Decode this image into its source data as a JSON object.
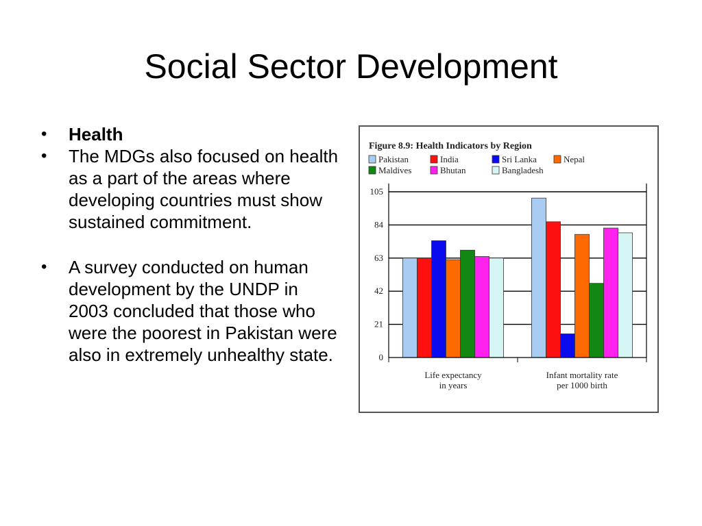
{
  "title": "Social Sector Development",
  "bullets": [
    {
      "text": "Health",
      "bold": true
    },
    {
      "text": "The MDGs also focused on health as a part of the areas where developing countries must show sustained commitment.",
      "bold": false
    },
    {
      "text": "A survey conducted on human development by the UNDP in 2003 concluded that those who were the poorest in Pakistan were also in extremely unhealthy state.",
      "bold": false
    }
  ],
  "chart_data": {
    "type": "bar",
    "title": "Figure 8.9: Health Indicators by Region",
    "categories": [
      "Life expectancy in years",
      "Infant mortality rate per 1000 birth"
    ],
    "category_lines": [
      [
        "Life expectancy",
        "in years"
      ],
      [
        "Infant mortality rate",
        "per 1000 birth"
      ]
    ],
    "ylim": [
      0,
      105
    ],
    "yticks": [
      "0",
      "21",
      "42",
      "63",
      "84",
      "105"
    ],
    "grid": true,
    "legend_position": "top",
    "series": [
      {
        "name": "Pakistan",
        "color": "#a9cdf2",
        "values": [
          63,
          101
        ]
      },
      {
        "name": "India",
        "color": "#ff1010",
        "values": [
          63,
          86
        ]
      },
      {
        "name": "Sri Lanka",
        "color": "#0b0bf0",
        "values": [
          74,
          15
        ]
      },
      {
        "name": "Nepal",
        "color": "#ff6a00",
        "values": [
          62,
          78
        ]
      },
      {
        "name": "Maldives",
        "color": "#118811",
        "values": [
          68,
          47
        ]
      },
      {
        "name": "Bhutan",
        "color": "#ff22ee",
        "values": [
          64,
          82
        ]
      },
      {
        "name": "Bangladesh",
        "color": "#d6f6f6",
        "values": [
          63,
          79
        ]
      }
    ]
  }
}
